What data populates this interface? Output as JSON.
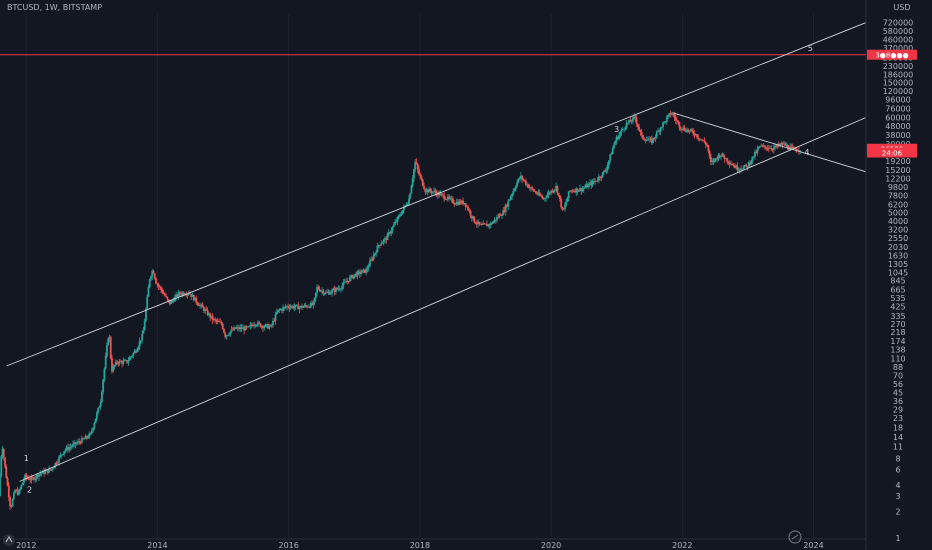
{
  "chart_data": {
    "type": "candlestick",
    "title": "BTCUSD, 1W, BITSTAMP",
    "currency": "USD",
    "y_scale": "log",
    "ylim": [
      1,
      900000
    ],
    "xlim": [
      2011.6,
      2024.8
    ],
    "grid": true,
    "y_ticks": [
      "720000",
      "580000",
      "460000",
      "370000",
      "290000",
      "230000",
      "186000",
      "150000",
      "120000",
      "96000",
      "76000",
      "60000",
      "48000",
      "38000",
      "30000",
      "24000",
      "19200",
      "15200",
      "12200",
      "9800",
      "7800",
      "6200",
      "5000",
      "4000",
      "3200",
      "2550",
      "2030",
      "1630",
      "1305",
      "1045",
      "845",
      "665",
      "535",
      "425",
      "335",
      "270",
      "218",
      "174",
      "138",
      "110",
      "88",
      "70",
      "56",
      "45",
      "36",
      "29",
      "23",
      "18",
      "14",
      "11",
      "8",
      "6",
      "4",
      "3",
      "2",
      "1"
    ],
    "x_ticks": [
      "2012",
      "2014",
      "2016",
      "2018",
      "2020",
      "2022",
      "2024"
    ],
    "price_tags": [
      {
        "value": 310000,
        "label": "3●8●●●",
        "color": "#f23645"
      },
      {
        "value": 26500,
        "label": "26528",
        "color": "#f23645"
      },
      {
        "value": 24000,
        "label": "24:06",
        "color": "#f23645"
      }
    ],
    "horizontal_line": {
      "value": 310000,
      "color": "#f23645"
    },
    "price_path": [
      [
        2011.6,
        3
      ],
      [
        2011.65,
        12
      ],
      [
        2011.7,
        6
      ],
      [
        2011.78,
        2.2
      ],
      [
        2011.85,
        3.5
      ],
      [
        2011.9,
        3.2
      ],
      [
        2012.0,
        5
      ],
      [
        2012.1,
        4.6
      ],
      [
        2012.2,
        5.3
      ],
      [
        2012.4,
        6
      ],
      [
        2012.6,
        10
      ],
      [
        2012.75,
        11.5
      ],
      [
        2012.9,
        13.3
      ],
      [
        2013.0,
        15
      ],
      [
        2013.15,
        35
      ],
      [
        2013.28,
        230
      ],
      [
        2013.32,
        80
      ],
      [
        2013.4,
        100
      ],
      [
        2013.55,
        100
      ],
      [
        2013.7,
        140
      ],
      [
        2013.8,
        210
      ],
      [
        2013.9,
        900
      ],
      [
        2013.95,
        1130
      ],
      [
        2014.0,
        800
      ],
      [
        2014.1,
        620
      ],
      [
        2014.2,
        460
      ],
      [
        2014.35,
        600
      ],
      [
        2014.5,
        620
      ],
      [
        2014.6,
        500
      ],
      [
        2014.75,
        380
      ],
      [
        2014.87,
        300
      ],
      [
        2015.0,
        270
      ],
      [
        2015.05,
        200
      ],
      [
        2015.2,
        240
      ],
      [
        2015.4,
        240
      ],
      [
        2015.5,
        280
      ],
      [
        2015.6,
        260
      ],
      [
        2015.75,
        250
      ],
      [
        2015.85,
        380
      ],
      [
        2016.0,
        430
      ],
      [
        2016.2,
        420
      ],
      [
        2016.4,
        450
      ],
      [
        2016.45,
        700
      ],
      [
        2016.6,
        600
      ],
      [
        2016.8,
        700
      ],
      [
        2017.0,
        960
      ],
      [
        2017.2,
        1100
      ],
      [
        2017.4,
        2200
      ],
      [
        2017.5,
        2500
      ],
      [
        2017.7,
        4500
      ],
      [
        2017.85,
        7000
      ],
      [
        2017.95,
        19000
      ],
      [
        2018.0,
        14000
      ],
      [
        2018.1,
        9000
      ],
      [
        2018.25,
        8500
      ],
      [
        2018.4,
        7500
      ],
      [
        2018.55,
        6500
      ],
      [
        2018.7,
        6500
      ],
      [
        2018.85,
        4000
      ],
      [
        2018.95,
        3500
      ],
      [
        2019.1,
        3700
      ],
      [
        2019.3,
        5200
      ],
      [
        2019.5,
        11000
      ],
      [
        2019.55,
        12800
      ],
      [
        2019.7,
        9500
      ],
      [
        2019.9,
        7200
      ],
      [
        2020.0,
        8500
      ],
      [
        2020.1,
        9800
      ],
      [
        2020.2,
        5000
      ],
      [
        2020.3,
        8800
      ],
      [
        2020.5,
        9300
      ],
      [
        2020.7,
        11500
      ],
      [
        2020.85,
        15000
      ],
      [
        2021.0,
        33000
      ],
      [
        2021.15,
        49000
      ],
      [
        2021.3,
        60000
      ],
      [
        2021.4,
        36000
      ],
      [
        2021.55,
        32000
      ],
      [
        2021.7,
        48000
      ],
      [
        2021.85,
        68000
      ],
      [
        2022.0,
        46000
      ],
      [
        2022.2,
        40000
      ],
      [
        2022.4,
        29000
      ],
      [
        2022.45,
        18000
      ],
      [
        2022.6,
        23000
      ],
      [
        2022.85,
        16000
      ],
      [
        2023.0,
        16500
      ],
      [
        2023.2,
        28000
      ],
      [
        2023.4,
        27000
      ],
      [
        2023.55,
        30000
      ],
      [
        2023.7,
        26000
      ],
      [
        2023.8,
        26500
      ]
    ],
    "trendlines": [
      {
        "name": "upper-channel",
        "from": [
          2011.7,
          90
        ],
        "to": [
          2024.8,
          720000
        ]
      },
      {
        "name": "lower-channel",
        "from": [
          2011.9,
          4.4
        ],
        "to": [
          2024.8,
          60000
        ]
      },
      {
        "name": "descending",
        "from": [
          2021.85,
          68000
        ],
        "to": [
          2024.8,
          14500
        ]
      }
    ],
    "wave_labels": [
      {
        "label": "1",
        "x": 2012.0,
        "y": 7.5
      },
      {
        "label": "2",
        "x": 2012.05,
        "y": 3.3
      },
      {
        "label": "3",
        "x": 2021.0,
        "y": 41000
      },
      {
        "label": "4",
        "x": 2023.9,
        "y": 22500
      },
      {
        "label": "5",
        "x": 2023.95,
        "y": 340000
      }
    ]
  }
}
